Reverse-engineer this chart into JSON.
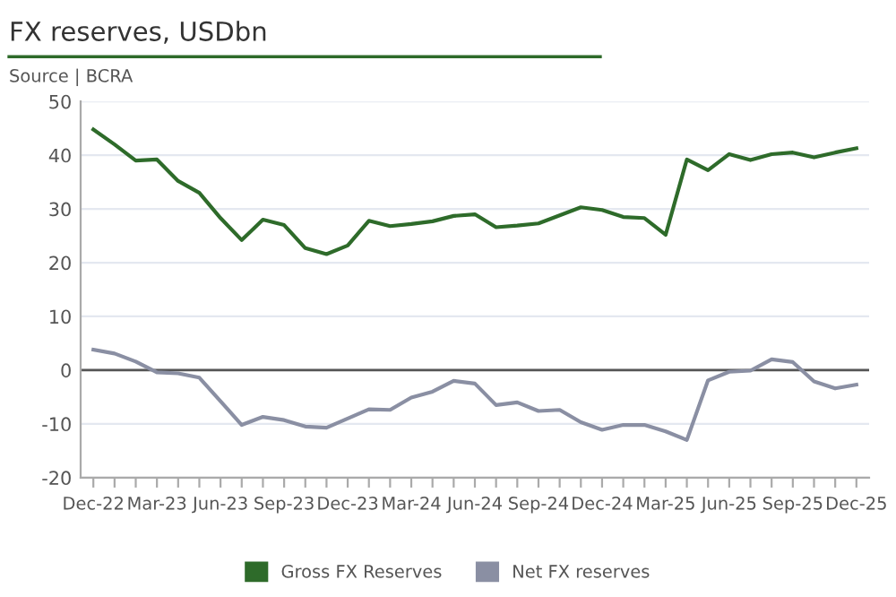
{
  "chart_data": {
    "type": "line",
    "title": "FX reserves, USDbn",
    "annotations": [
      "Source | BCRA"
    ],
    "categories": [
      "Dec-22",
      null,
      null,
      "Mar-23",
      null,
      null,
      "Jun-23",
      null,
      null,
      "Sep-23",
      null,
      null,
      "Dec-23",
      null,
      null,
      "Mar-24",
      null,
      null,
      "Jun-24",
      null,
      null,
      "Sep-24",
      null,
      null,
      "Dec-24",
      null,
      null,
      "Mar-25",
      null,
      null,
      "Jun-25",
      null,
      null,
      "Sep-25",
      null,
      null,
      "Dec-25"
    ],
    "series": [
      {
        "name": "Gross FX Reserves",
        "color": "#2e6b2a",
        "values": [
          44.8,
          42,
          39,
          39.2,
          35.2,
          33,
          28.3,
          24.2,
          28,
          27,
          22.7,
          21.6,
          23.2,
          27.8,
          26.8,
          27.2,
          27.7,
          28.7,
          29.0,
          26.6,
          26.9,
          27.3,
          28.8,
          30.3,
          29.8,
          28.5,
          28.3,
          25.2,
          39.2,
          37.2,
          40.2,
          39.1,
          40.2,
          40.5,
          39.6,
          40.5,
          41.3
        ]
      },
      {
        "name": "Net FX reserves",
        "color": "#8a8fa3",
        "values": [
          3.8,
          3.1,
          1.6,
          -0.4,
          -0.6,
          -1.4,
          -5.8,
          -10.2,
          -8.7,
          -9.3,
          -10.5,
          -10.7,
          -9.0,
          -7.3,
          -7.4,
          -5.1,
          -4.0,
          -2.0,
          -2.5,
          -6.5,
          -6.0,
          -7.6,
          -7.4,
          -9.7,
          -11.1,
          -10.2,
          -10.2,
          -11.4,
          -13.0,
          -1.9,
          -0.3,
          -0.1,
          2.0,
          1.5,
          -2.1,
          -3.4,
          -2.7
        ]
      }
    ],
    "ylim": [
      -20,
      50
    ],
    "yticks": [
      -20,
      -10,
      0,
      10,
      20,
      30,
      40,
      50
    ],
    "ref_lines": [
      {
        "axis": "y",
        "value": 0,
        "color": "#555555"
      }
    ],
    "grid": "y",
    "legend": "bottom",
    "marker": "none",
    "line_style": "solid"
  }
}
